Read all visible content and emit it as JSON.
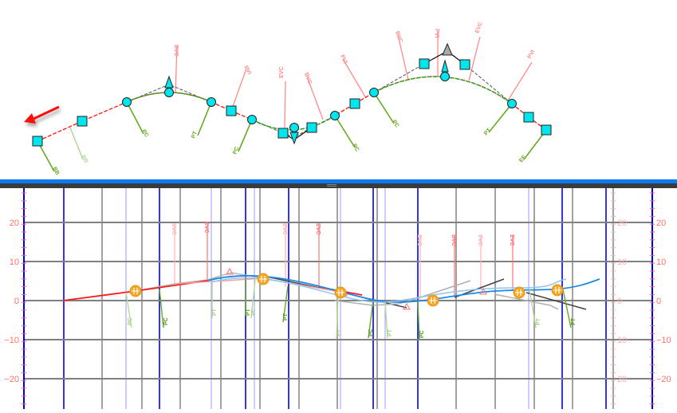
{
  "plan_view": {
    "labels": {
      "pink": [
        "BVC",
        "PVI",
        "EVC",
        "BVC",
        "PVI",
        "BVC",
        "PVI",
        "EVC",
        "PVI"
      ],
      "green": [
        "BB",
        "BB",
        "PC",
        "PT",
        "PC",
        "PC",
        "PC",
        "PT",
        "EE"
      ]
    },
    "colors": {
      "marker": "#00e5ee",
      "alignment": "#ff0000",
      "tangent_grips": "#808080",
      "label_pink": "#ff8080",
      "label_green": "#66aa22",
      "direction_arrow": "#ff0000"
    }
  },
  "splitter": {
    "grip": "splitter-grip-icon"
  },
  "profile_view": {
    "y_axis_left": [
      "20",
      "10",
      "0",
      "−10",
      "−20"
    ],
    "y_axis_right": [
      "20",
      "10",
      "0",
      "−10",
      "−20"
    ],
    "y_axis_right_faded": [
      "20",
      "10",
      "0",
      "10",
      "20"
    ],
    "pvi_labels": [
      "BVC",
      "EVC",
      "EVC",
      "EVC",
      "BVC",
      "BVC",
      "EVC",
      "EVC"
    ],
    "station_labels": [
      "PC",
      "PC",
      "PT",
      "PT",
      "PC",
      "PT",
      "PT",
      "PC",
      "PT",
      "PC",
      "PT",
      "PT"
    ],
    "colors": {
      "grid": "#808080",
      "major_station": "#0000ee",
      "minor_station": "#8080ff",
      "existing": "#ff2020",
      "design": "#1e88e5",
      "design_light": "#90c4f5",
      "grip": "#f5a623"
    }
  }
}
